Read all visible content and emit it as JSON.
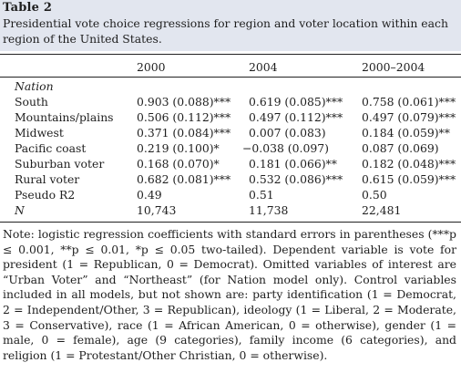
{
  "table": {
    "label": "Table 2",
    "caption": "Presidential vote choice regressions for region and voter location within each region of the United States."
  },
  "columns": [
    "2000",
    "2004",
    "2000–2004"
  ],
  "section_label": "Nation",
  "rows": [
    {
      "label": "South",
      "v": [
        "0.903 (0.088)***",
        "0.619 (0.085)***",
        "0.758 (0.061)***"
      ]
    },
    {
      "label": "Mountains/plains",
      "v": [
        "0.506 (0.112)***",
        "0.497 (0.112)***",
        "0.497 (0.079)***"
      ]
    },
    {
      "label": "Midwest",
      "v": [
        "0.371 (0.084)***",
        "0.007 (0.083)",
        "0.184 (0.059)**"
      ]
    },
    {
      "label": "Pacific coast",
      "v": [
        "0.219 (0.100)*",
        "−0.038 (0.097)",
        "0.087 (0.069)"
      ]
    },
    {
      "label": "Suburban voter",
      "v": [
        "0.168 (0.070)*",
        "0.181 (0.066)**",
        "0.182 (0.048)***"
      ]
    },
    {
      "label": "Rural voter",
      "v": [
        "0.682 (0.081)***",
        "0.532 (0.086)***",
        "0.615 (0.059)***"
      ]
    },
    {
      "label": "Pseudo R2",
      "v": [
        "0.49",
        "0.51",
        "0.50"
      ]
    },
    {
      "label": "N",
      "v": [
        "10,743",
        "11,738",
        "22,481"
      ]
    }
  ],
  "note": "Note: logistic regression coefficients with standard errors in parentheses (***p ≤ 0.001, **p ≤ 0.01, *p ≤ 0.05 two-tailed). Dependent variable is vote for president (1 = Republican, 0 = Democrat). Omitted variables of interest are “Urban Voter” and “Northeast” (for Nation model only). Control variables included in all models, but not shown are: party identification (1 = Democrat, 2 = Independent/Other, 3 = Republican), ideology (1 = Liberal, 2 = Moderate, 3 = Conservative), race (1 = African American, 0 = otherwise), gender (1 = male, 0 = female), age (9 categories), family income (6 categories), and religion (1 = Protestant/Other Christian, 0 = otherwise)."
}
